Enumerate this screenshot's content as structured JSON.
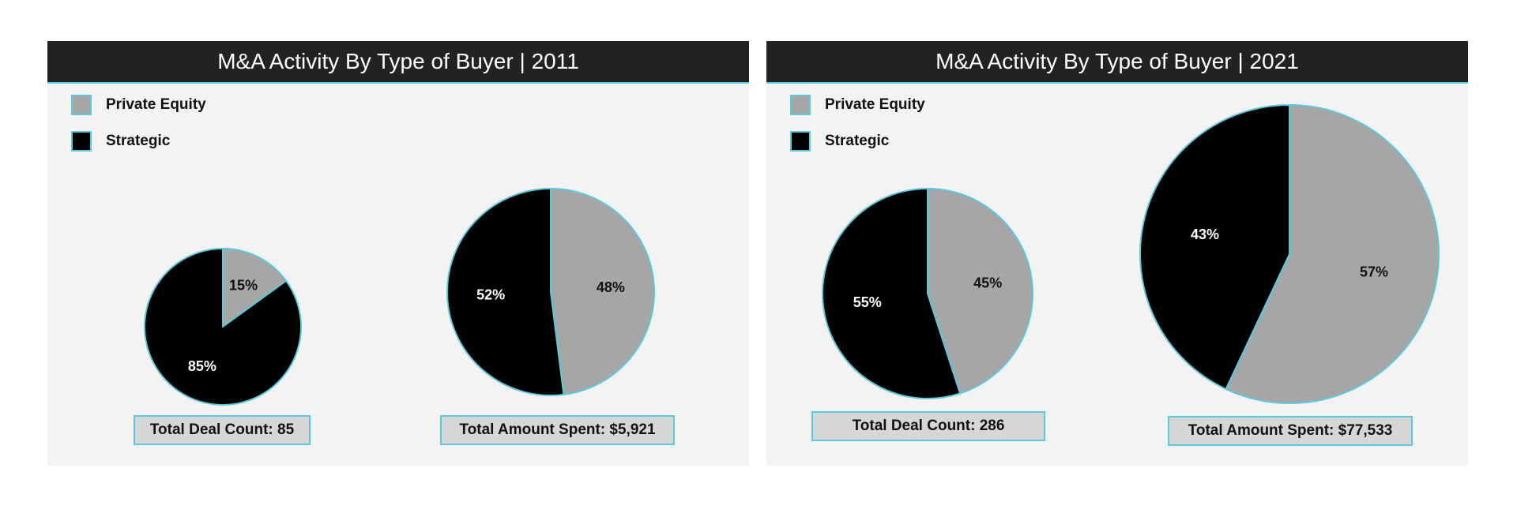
{
  "chart_data": [
    {
      "type": "pie",
      "title": "M&A Activity By Type of Buyer | 2011",
      "legend": [
        {
          "name": "Private Equity",
          "color": "#a6a6a6"
        },
        {
          "name": "Strategic",
          "color": "#000000"
        }
      ],
      "pies": [
        {
          "slices": [
            {
              "name": "Private Equity",
              "value": 15,
              "label": "15%",
              "color": "#a6a6a6"
            },
            {
              "name": "Strategic",
              "value": 85,
              "label": "85%",
              "color": "#000000"
            }
          ],
          "total_label": "Total Deal Count: 85"
        },
        {
          "slices": [
            {
              "name": "Private Equity",
              "value": 48,
              "label": "48%",
              "color": "#a6a6a6"
            },
            {
              "name": "Strategic",
              "value": 52,
              "label": "52%",
              "color": "#000000"
            }
          ],
          "total_label": "Total Amount Spent: $5,921"
        }
      ]
    },
    {
      "type": "pie",
      "title": "M&A Activity By Type of Buyer | 2021",
      "legend": [
        {
          "name": "Private Equity",
          "color": "#a6a6a6"
        },
        {
          "name": "Strategic",
          "color": "#000000"
        }
      ],
      "pies": [
        {
          "slices": [
            {
              "name": "Private Equity",
              "value": 45,
              "label": "45%",
              "color": "#a6a6a6"
            },
            {
              "name": "Strategic",
              "value": 55,
              "label": "55%",
              "color": "#000000"
            }
          ],
          "total_label": "Total Deal Count: 286"
        },
        {
          "slices": [
            {
              "name": "Private Equity",
              "value": 57,
              "label": "57%",
              "color": "#a6a6a6"
            },
            {
              "name": "Strategic",
              "value": 43,
              "label": "43%",
              "color": "#000000"
            }
          ],
          "total_label": "Total Amount Spent: $77,533"
        }
      ]
    }
  ]
}
